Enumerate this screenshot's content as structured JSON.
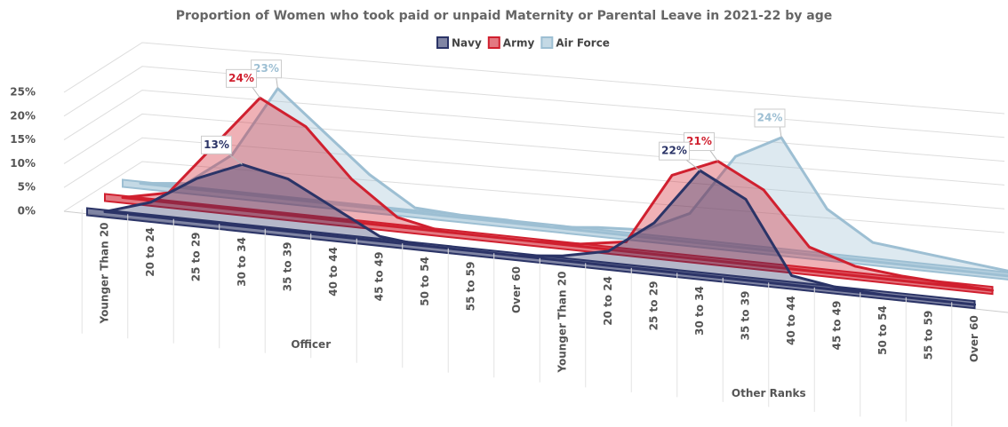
{
  "chart_data": {
    "type": "area3d",
    "title": "Proportion of Women who took paid or unpaid Maternity or Parental Leave in 2021-22 by age",
    "groups": [
      {
        "name": "Officer",
        "categories": [
          "Younger Than 20",
          "20 to 24",
          "25 to 29",
          "30 to 34",
          "35 to 39",
          "40 to 44",
          "45 to 49",
          "50 to 54",
          "55 to 59",
          "Over 60"
        ]
      },
      {
        "name": "Other Ranks",
        "categories": [
          "Younger Than 20",
          "20 to 24",
          "25 to 29",
          "30 to 34",
          "35 to 39",
          "40 to 44",
          "45 to 49",
          "50 to 54",
          "55 to 59",
          "Over 60"
        ]
      }
    ],
    "series": [
      {
        "name": "Navy",
        "color": "#2b3467",
        "values": [
          0,
          3,
          9,
          13,
          11,
          6,
          1,
          0,
          0,
          0,
          1,
          3,
          10,
          22,
          17,
          2,
          0.5,
          0,
          0,
          0
        ],
        "value_labels": [
          null,
          null,
          null,
          "13%",
          null,
          null,
          null,
          null,
          null,
          null,
          null,
          null,
          null,
          "22%",
          null,
          null,
          null,
          null,
          null,
          null
        ]
      },
      {
        "name": "Army",
        "color": "#d0202f",
        "values": [
          0,
          2,
          13,
          24,
          19,
          9,
          2,
          0,
          0,
          0,
          0.5,
          2,
          17,
          21,
          16,
          5,
          2,
          1,
          0.5,
          0
        ],
        "value_labels": [
          null,
          null,
          null,
          "24%",
          null,
          null,
          null,
          null,
          null,
          null,
          null,
          null,
          null,
          "21%",
          null,
          null,
          null,
          null,
          null,
          null
        ]
      },
      {
        "name": "Air Force",
        "color": "#9dbfd3",
        "values": [
          0,
          1,
          8,
          23,
          15,
          7,
          1,
          0.5,
          0.5,
          0,
          1,
          1.5,
          6,
          19,
          24,
          10,
          4,
          3,
          2,
          1
        ],
        "value_labels": [
          null,
          null,
          null,
          "23%",
          null,
          null,
          null,
          null,
          null,
          null,
          null,
          null,
          null,
          null,
          "24%",
          null,
          null,
          null,
          null,
          null
        ]
      }
    ],
    "ylim": [
      0,
      25
    ],
    "yticks": [
      {
        "value": 0,
        "label": "0%"
      },
      {
        "value": 5,
        "label": "5%"
      },
      {
        "value": 10,
        "label": "10%"
      },
      {
        "value": 15,
        "label": "15%"
      },
      {
        "value": 20,
        "label": "20%"
      },
      {
        "value": 25,
        "label": "25%"
      }
    ],
    "grid": true,
    "legend": "top"
  }
}
